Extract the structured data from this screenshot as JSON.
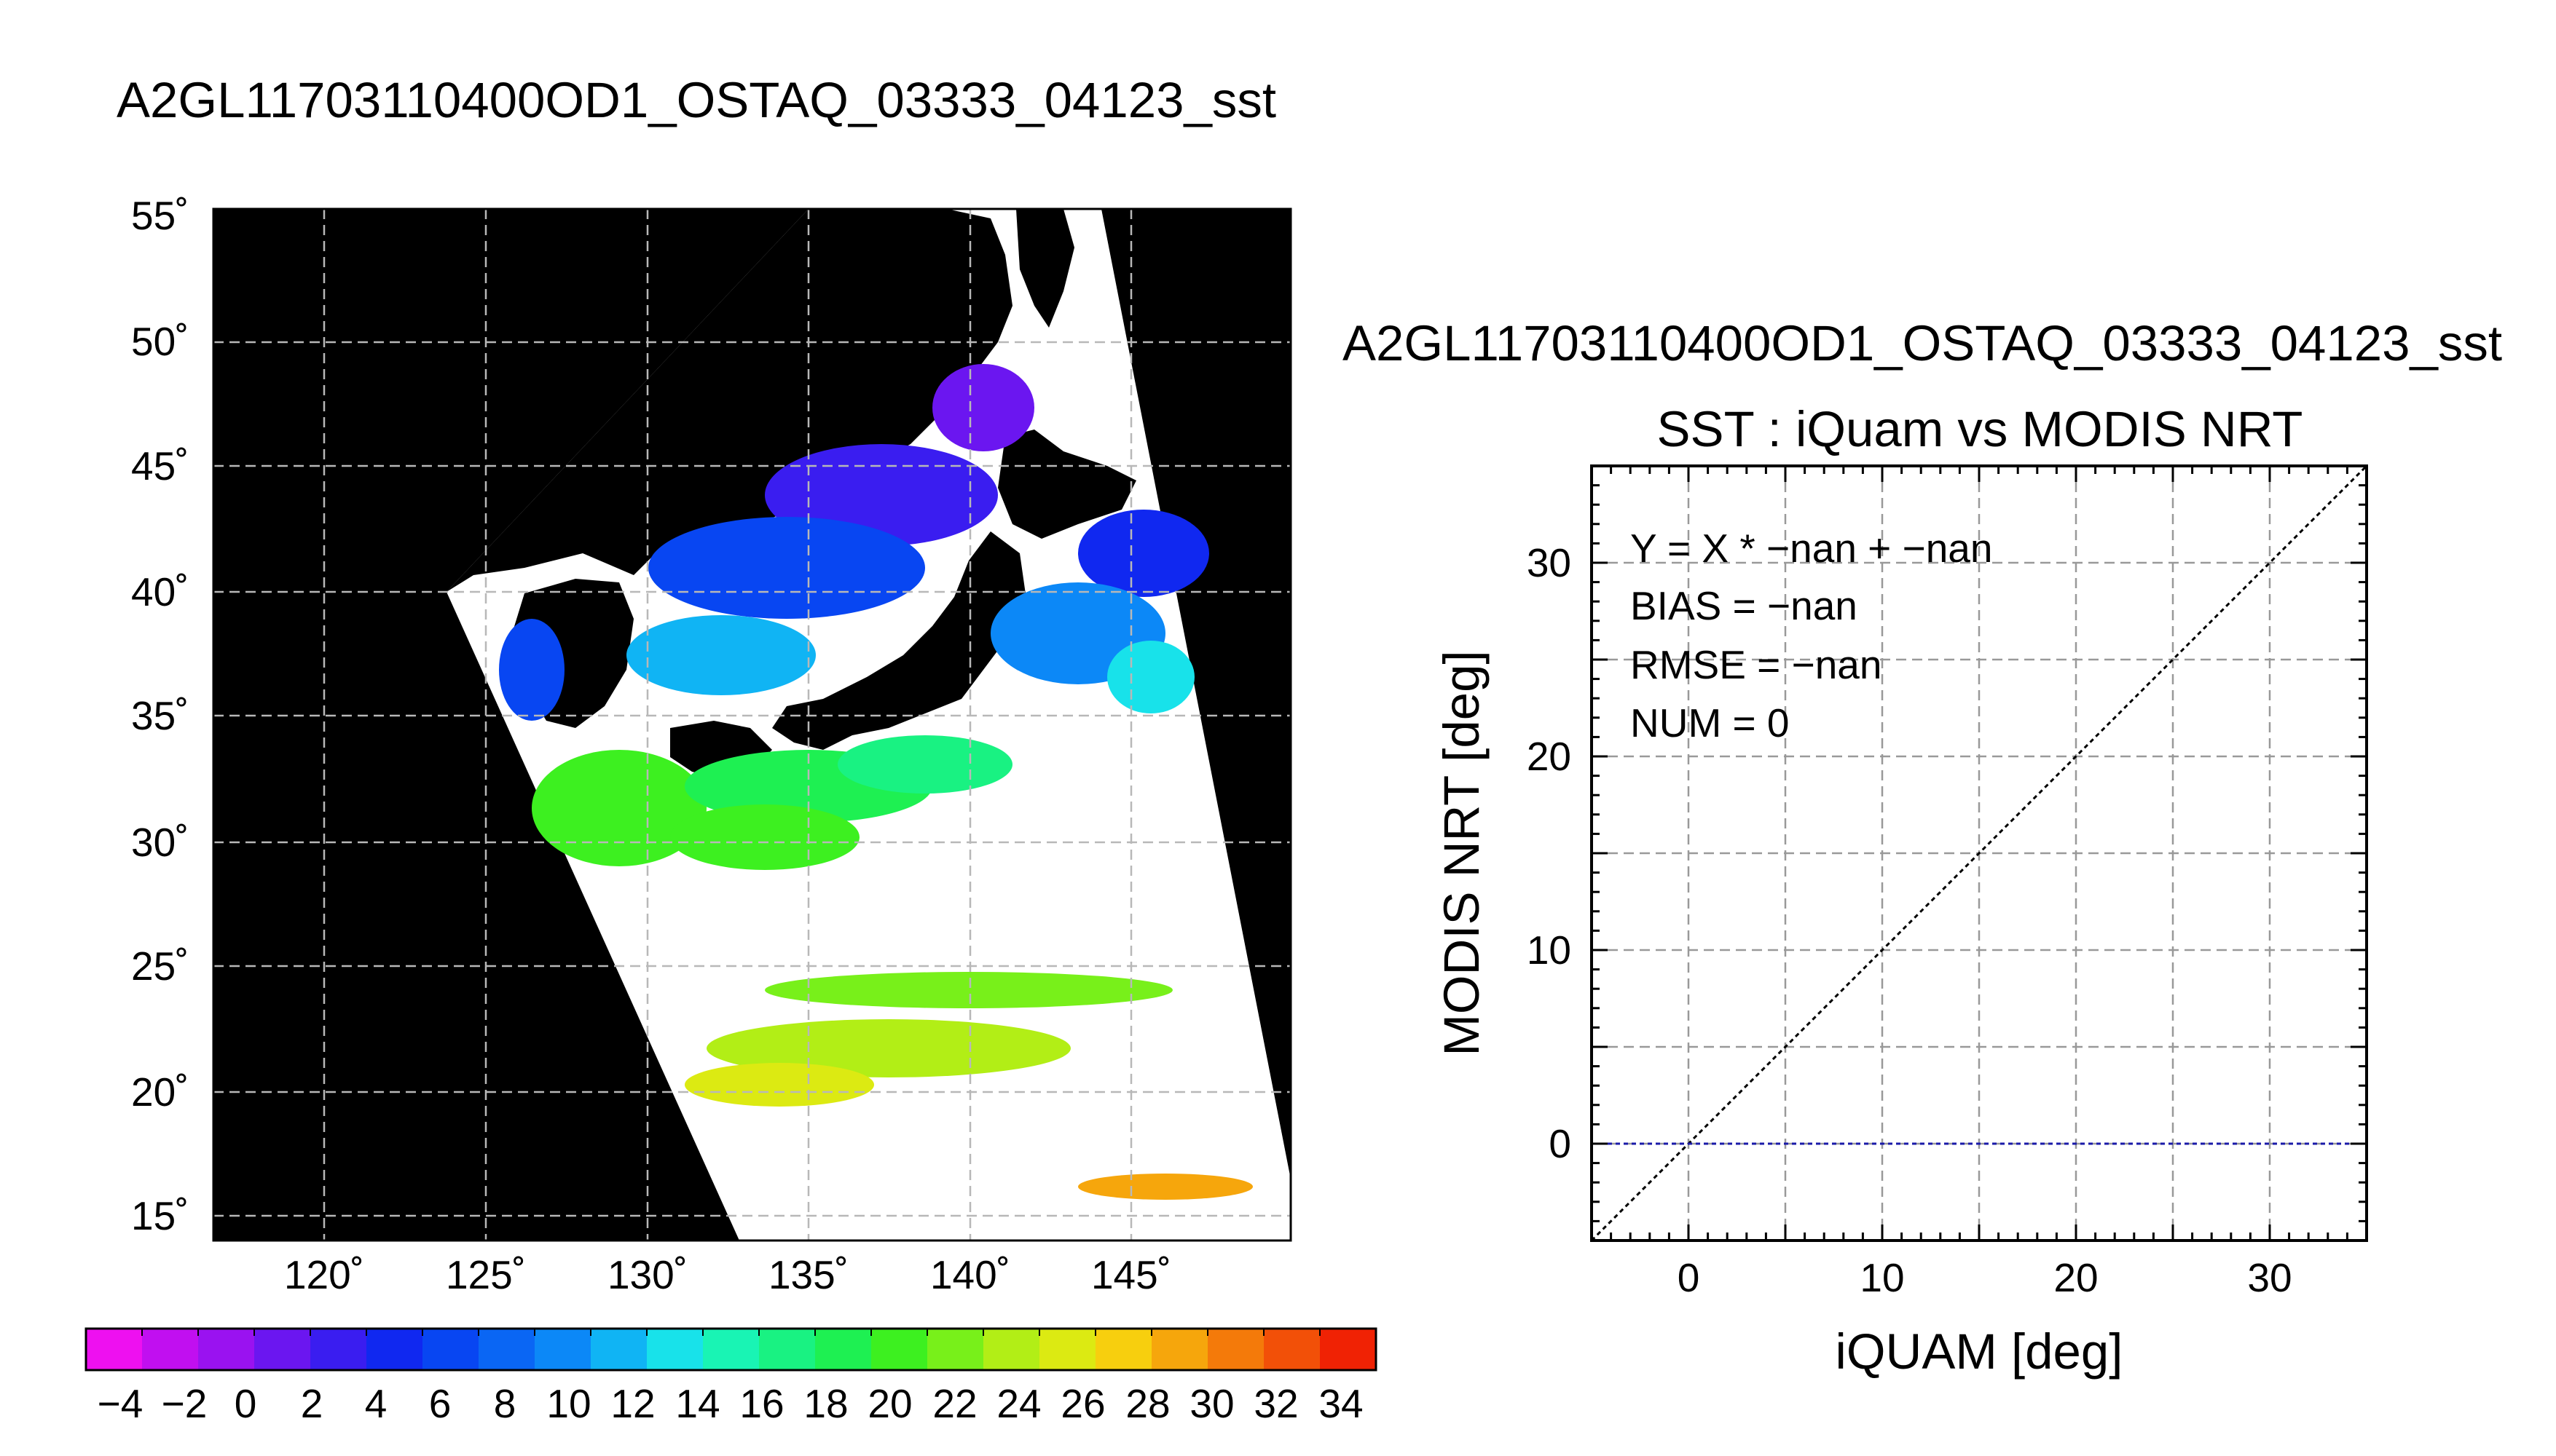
{
  "map_panel": {
    "title": "A2GL11703110400OD1_OSTAQ_03333_04123_sst",
    "lat_labels": [
      "55˚",
      "50˚",
      "45˚",
      "40˚",
      "35˚",
      "30˚",
      "25˚",
      "20˚",
      "15˚"
    ],
    "lon_labels": [
      "120˚",
      "125˚",
      "130˚",
      "135˚",
      "140˚",
      "145˚"
    ]
  },
  "colorbar": {
    "tick_labels": [
      "−4",
      "−2",
      "0",
      "2",
      "4",
      "6",
      "8",
      "10",
      "12",
      "14",
      "16",
      "18",
      "20",
      "22",
      "24",
      "26",
      "28",
      "30",
      "32",
      "34"
    ],
    "colors": [
      "#ee10f0",
      "#c10ff0",
      "#9a12f0",
      "#6b16f0",
      "#3a1df0",
      "#1028f0",
      "#0846f2",
      "#0a66f4",
      "#0c88f7",
      "#10b4f4",
      "#18e2ea",
      "#19f4b4",
      "#19f282",
      "#1ef052",
      "#3df020",
      "#78f01a",
      "#b2ee16",
      "#dcea12",
      "#f7cf0e",
      "#f6a60c",
      "#f47a0a",
      "#f25008",
      "#f02204"
    ]
  },
  "scatter_panel": {
    "file_title": "A2GL11703110400OD1_OSTAQ_03333_04123_sst",
    "title": "SST : iQuam vs MODIS NRT",
    "stats": {
      "fit": "Y = X * −nan + −nan",
      "bias": "BIAS = −nan",
      "rmse": "RMSE = −nan",
      "num": "NUM = 0"
    }
  },
  "chart_data": {
    "type": "scatter",
    "title": "SST : iQuam vs MODIS NRT",
    "xlabel": "iQUAM [deg]",
    "ylabel": "MODIS NRT [deg]",
    "xlim": [
      -5,
      35
    ],
    "ylim": [
      -5,
      35
    ],
    "xticks": [
      "0",
      "10",
      "20",
      "30"
    ],
    "yticks": [
      "0",
      "10",
      "20",
      "30"
    ],
    "grid": true,
    "points": [],
    "reference_lines": [
      {
        "name": "1:1 line",
        "style": "dotted",
        "color": "#000000",
        "x": [
          -5,
          35
        ],
        "y": [
          -5,
          35
        ]
      },
      {
        "name": "fit line",
        "style": "dotted",
        "color": "#1a1aa8",
        "x": [
          -5,
          35
        ],
        "y": [
          0,
          0
        ]
      }
    ]
  }
}
